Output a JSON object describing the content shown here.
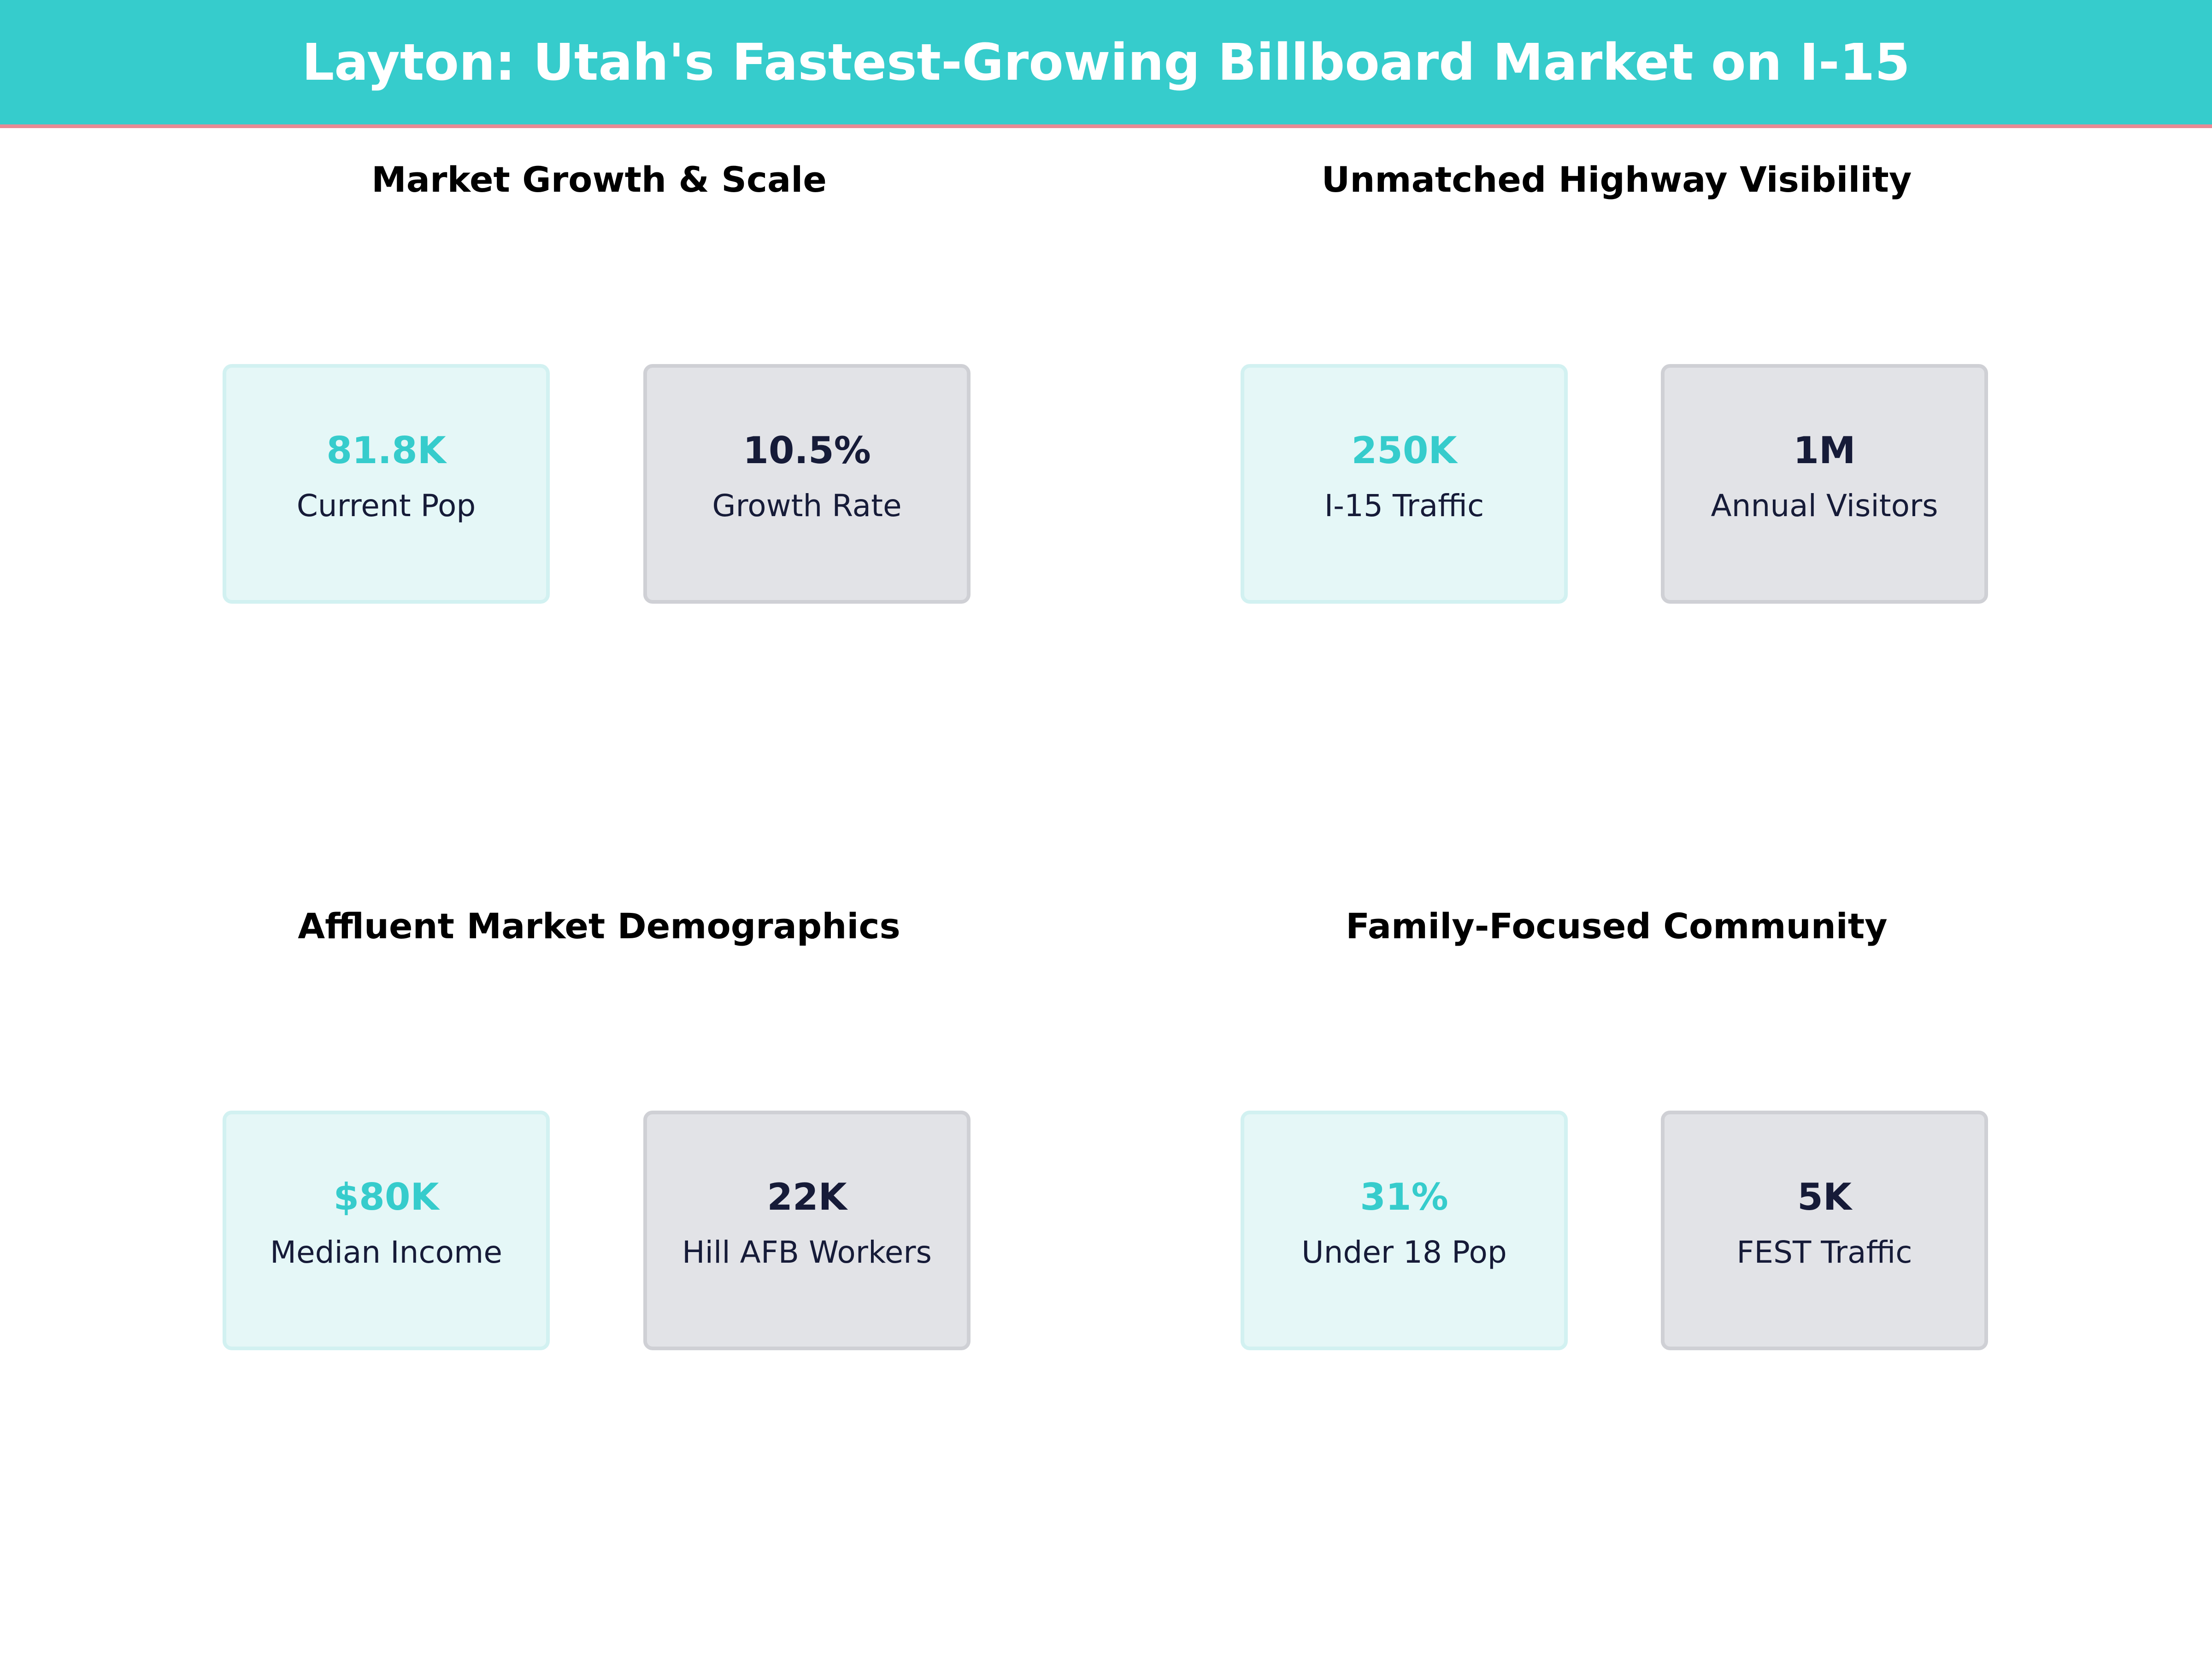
{
  "header": {
    "title": "Layton: Utah's Fastest-Growing Billboard Market on I-15"
  },
  "colors": {
    "accent": "#36cccc",
    "header_border": "#e88a94",
    "dark_text": "#161b38",
    "teal_card_bg": "#e5f7f7",
    "gray_card_bg": "#e2e3e7"
  },
  "panels": [
    {
      "title": "Market Growth & Scale",
      "cards": [
        {
          "value": "81.8K",
          "label": "Current Pop"
        },
        {
          "value": "10.5%",
          "label": "Growth Rate"
        }
      ]
    },
    {
      "title": "Unmatched Highway Visibility",
      "cards": [
        {
          "value": "250K",
          "label": "I-15 Traffic"
        },
        {
          "value": "1M",
          "label": "Annual Visitors"
        }
      ]
    },
    {
      "title": "Affluent Market Demographics",
      "cards": [
        {
          "value": "$80K",
          "label": "Median Income"
        },
        {
          "value": "22K",
          "label": "Hill AFB Workers"
        }
      ]
    },
    {
      "title": "Family-Focused Community",
      "cards": [
        {
          "value": "31%",
          "label": "Under 18 Pop"
        },
        {
          "value": "5K",
          "label": "FEST Traffic"
        }
      ]
    }
  ]
}
